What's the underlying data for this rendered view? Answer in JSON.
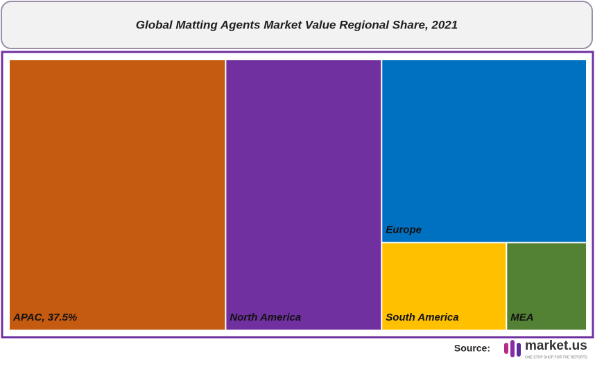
{
  "chart_data": {
    "type": "treemap",
    "title": "Global Matting Agents Market Value Regional Share, 2021",
    "categories": [
      "APAC, 37.5%",
      "North America",
      "Europe",
      "South America",
      "MEA"
    ],
    "values": [
      37.5,
      27,
      24,
      7,
      4.5
    ],
    "colors": [
      "#c55a11",
      "#7030a0",
      "#0070c0",
      "#ffc000",
      "#548235"
    ]
  },
  "source": {
    "label": "Source:",
    "brand": "market.us",
    "tagline": "ONE STOP SHOP FOR THE REPORTS"
  }
}
